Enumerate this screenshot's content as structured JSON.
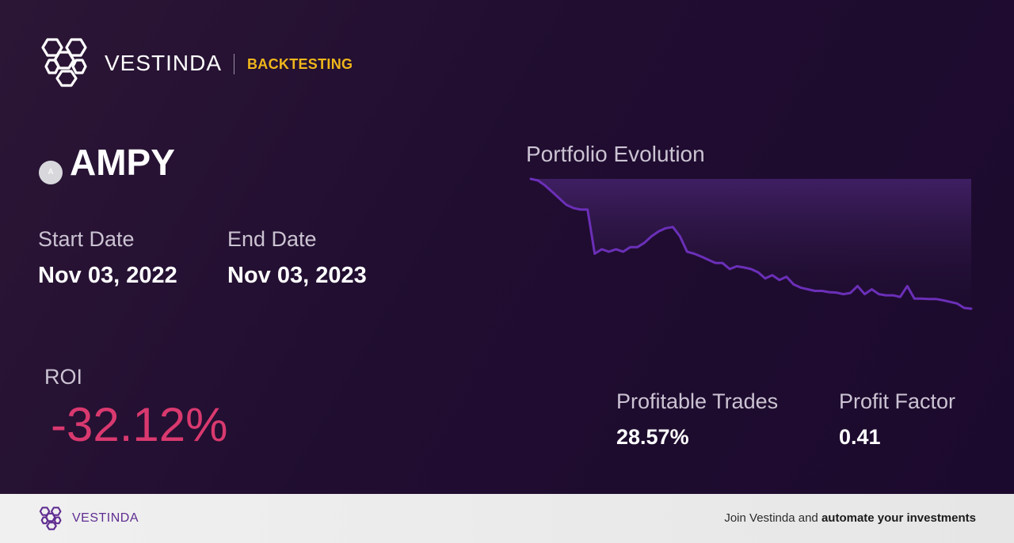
{
  "header": {
    "brand": "VESTINDA",
    "tag": "BACKTESTING",
    "logo_icon": "hexagon-cluster-logo-icon"
  },
  "ticker": {
    "symbol": "AMPY",
    "badge_letter": "A"
  },
  "dates": {
    "start_label": "Start Date",
    "start_value": "Nov 03, 2022",
    "end_label": "End Date",
    "end_value": "Nov 03, 2023"
  },
  "roi": {
    "label": "ROI",
    "value": "-32.12%"
  },
  "stats": {
    "profitable_label": "Profitable Trades",
    "profitable_value": "28.57%",
    "factor_label": "Profit Factor",
    "factor_value": "0.41"
  },
  "chart_title": "Portfolio Evolution",
  "chart_data": {
    "type": "area",
    "title": "Portfolio Evolution",
    "xlabel": "",
    "ylabel": "",
    "grid": false,
    "x": [
      0,
      1,
      2,
      3,
      4,
      5,
      6,
      7,
      8,
      9,
      10,
      11,
      12,
      13,
      14,
      15,
      16,
      17,
      18,
      19,
      20,
      21,
      22,
      23,
      24,
      25,
      26,
      27,
      28,
      29,
      30,
      31,
      32,
      33,
      34,
      35,
      36,
      37,
      38,
      39,
      40,
      41,
      42,
      43,
      44,
      45,
      46,
      47,
      48,
      49,
      50,
      51,
      52,
      53,
      54,
      55,
      56,
      57,
      58,
      59,
      60,
      61,
      62
    ],
    "values": [
      100,
      99.6,
      98.4,
      96.8,
      95.2,
      93.6,
      92.8,
      92.4,
      92.4,
      81.5,
      82.6,
      82.0,
      82.6,
      82.0,
      83.1,
      83.1,
      84.2,
      85.8,
      87.0,
      87.8,
      88.1,
      85.8,
      82.0,
      81.5,
      80.8,
      80.0,
      79.2,
      79.2,
      77.7,
      78.4,
      78.1,
      77.7,
      76.9,
      75.4,
      76.2,
      75.0,
      75.8,
      73.9,
      73.1,
      72.7,
      72.3,
      72.3,
      72.0,
      71.9,
      71.5,
      71.8,
      73.5,
      71.5,
      72.7,
      71.5,
      71.2,
      71.2,
      70.8,
      73.5,
      70.4,
      70.4,
      70.3,
      70.3,
      70.0,
      69.6,
      69.2,
      68.1,
      67.9
    ],
    "colors": {
      "line": "#6b2fb8",
      "fill_top": "#3f1f63",
      "fill_bottom": "#21102f"
    }
  },
  "colors": {
    "accent": "#f0b71a",
    "roi_negative": "#d9396f",
    "brand_purple": "#5f2d91"
  },
  "footer": {
    "brand": "VESTINDA",
    "cta_prefix": "Join Vestinda and ",
    "cta_bold": "automate your investments"
  }
}
